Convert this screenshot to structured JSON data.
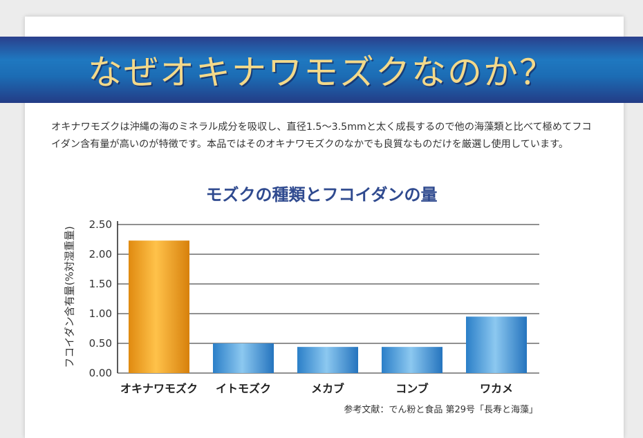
{
  "banner": {
    "title": "なぜオキナワモズクなのか？"
  },
  "intro": {
    "text": "オキナワモズクは沖縄の海のミネラル成分を吸収し、直径1.5〜3.5mmと太く成長するので他の海藻類と比べて極めてフコイダン含有量が高いのが特徴です。本品ではそのオキナワモズクのなかでも良質なものだけを厳選し使用しています。"
  },
  "source": "参考文献：でん粉と食品 第29号「長寿と海藻」",
  "colors": {
    "highlight_bar": "#f0a020",
    "other_bar": "#3f97d8",
    "title": "#2f4a8f",
    "banner_text": "#f3d98a"
  },
  "chart_data": {
    "type": "bar",
    "title": "モズクの種類とフコイダンの量",
    "ylabel": "フコイダン含有量(%対湿重量)",
    "xlabel": "",
    "categories": [
      "オキナワモズク",
      "イトモズク",
      "メカブ",
      "コンブ",
      "ワカメ"
    ],
    "values": [
      2.23,
      0.5,
      0.44,
      0.44,
      0.95
    ],
    "ylim": [
      0,
      2.5
    ],
    "yticks": [
      "0.00",
      "0.50",
      "1.00",
      "1.50",
      "2.00",
      "2.50"
    ],
    "grid": true,
    "legend": "none"
  }
}
